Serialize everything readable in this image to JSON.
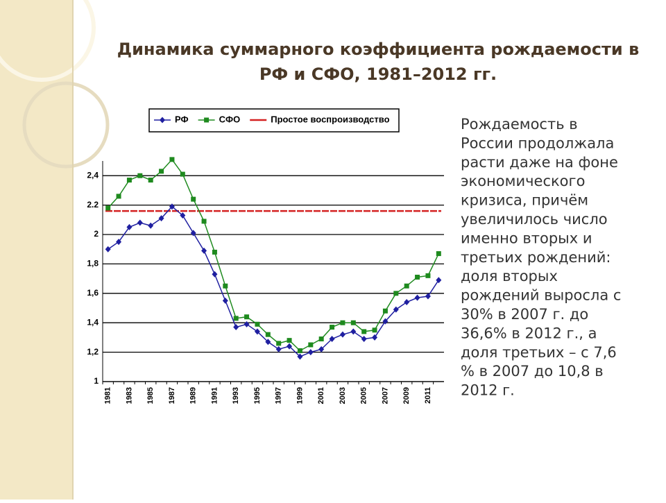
{
  "title_lines": [
    "Динамика суммарного коэффициента рождаемости в",
    "РФ и СФО, 1981–2012 гг."
  ],
  "text_lines": [
    "Рождаемость в",
    "России продолжала",
    "расти даже на фоне",
    "экономического",
    "кризиса, причём",
    "увеличилось число",
    "именно вторых и",
    "третьих рождений:",
    "доля вторых",
    "рождений выросла с",
    "30% в 2007 г.  до",
    "36,6% в 2012 г., а",
    "доля третьих – с 7,6",
    "% в 2007 до 10,8 в",
    "2012 г."
  ],
  "chart_data": {
    "type": "line",
    "categories": [
      "1981",
      null,
      "1983",
      null,
      "1985",
      null,
      "1987",
      null,
      "1989",
      null,
      "1991",
      null,
      "1993",
      null,
      "1995",
      null,
      "1997",
      null,
      "1999",
      null,
      "2001",
      null,
      "2003",
      null,
      "2005",
      null,
      "2007",
      null,
      "2009",
      null,
      "2011",
      null
    ],
    "series": [
      {
        "name": "РФ",
        "color": "#1f1fa0",
        "marker": "diamond",
        "values": [
          1.9,
          1.95,
          2.05,
          2.08,
          2.06,
          2.11,
          2.19,
          2.13,
          2.01,
          1.89,
          1.73,
          1.55,
          1.37,
          1.39,
          1.34,
          1.27,
          1.22,
          1.24,
          1.17,
          1.2,
          1.22,
          1.29,
          1.32,
          1.34,
          1.29,
          1.3,
          1.41,
          1.49,
          1.54,
          1.57,
          1.58,
          1.69
        ]
      },
      {
        "name": "СФО",
        "color": "#1e8a1e",
        "marker": "square",
        "values": [
          2.18,
          2.26,
          2.37,
          2.4,
          2.37,
          2.43,
          2.51,
          2.41,
          2.24,
          2.09,
          1.88,
          1.65,
          1.43,
          1.44,
          1.39,
          1.32,
          1.26,
          1.28,
          1.21,
          1.25,
          1.29,
          1.37,
          1.4,
          1.4,
          1.34,
          1.35,
          1.48,
          1.6,
          1.65,
          1.71,
          1.72,
          1.87
        ]
      }
    ],
    "reference_line": {
      "name": "Простое воспроизводство",
      "value": 2.16,
      "color": "#d42020"
    },
    "ylim": [
      1,
      2.5
    ],
    "yticks": [
      1,
      {
        "value": 1.2,
        "label": "1,2"
      },
      {
        "value": 1.4,
        "label": "1,4"
      },
      {
        "value": 1.6,
        "label": "1,6"
      },
      {
        "value": 1.8,
        "label": "1,8"
      },
      2,
      2.2,
      {
        "value": 2.4,
        "label": "2,4"
      }
    ],
    "grid": true
  }
}
